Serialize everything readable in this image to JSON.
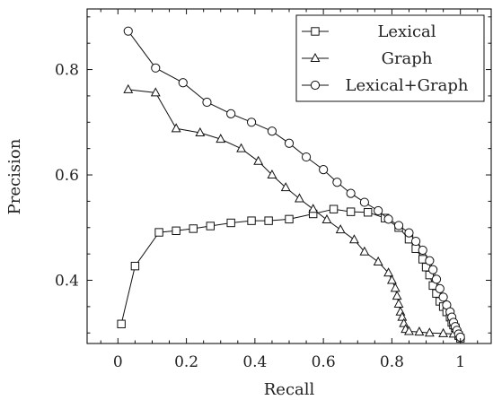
{
  "chart_data": {
    "type": "line",
    "title": "",
    "xlabel": "Recall",
    "ylabel": "Precision",
    "xlim": [
      -0.09,
      1.09
    ],
    "ylim": [
      0.28,
      0.915
    ],
    "xticks": [
      0,
      0.2,
      0.4,
      0.6,
      0.8,
      1
    ],
    "xtick_labels": [
      "0",
      "0.2",
      "0.4",
      "0.6",
      "0.8",
      "1"
    ],
    "yticks": [
      0.4,
      0.6,
      0.8
    ],
    "ytick_labels": [
      "0.4",
      "0.6",
      "0.8"
    ],
    "grid": false,
    "legend_position": "top-right",
    "series": [
      {
        "name": "Lexical",
        "marker": "square",
        "x": [
          0.01,
          0.05,
          0.12,
          0.17,
          0.22,
          0.27,
          0.33,
          0.39,
          0.44,
          0.5,
          0.57,
          0.63,
          0.68,
          0.73,
          0.78,
          0.82,
          0.85,
          0.87,
          0.89,
          0.9,
          0.91,
          0.92,
          0.93,
          0.94,
          0.95,
          0.96,
          0.97,
          0.975,
          0.98,
          0.985,
          0.99,
          0.995,
          1.0
        ],
        "y": [
          0.317,
          0.427,
          0.491,
          0.494,
          0.498,
          0.503,
          0.509,
          0.513,
          0.513,
          0.516,
          0.526,
          0.535,
          0.53,
          0.529,
          0.518,
          0.5,
          0.478,
          0.46,
          0.44,
          0.425,
          0.41,
          0.39,
          0.375,
          0.36,
          0.35,
          0.34,
          0.33,
          0.32,
          0.315,
          0.31,
          0.3,
          0.295,
          0.29
        ]
      },
      {
        "name": "Graph",
        "marker": "triangle",
        "x": [
          0.03,
          0.11,
          0.17,
          0.24,
          0.3,
          0.36,
          0.41,
          0.45,
          0.49,
          0.53,
          0.57,
          0.61,
          0.65,
          0.69,
          0.72,
          0.76,
          0.79,
          0.8,
          0.81,
          0.815,
          0.82,
          0.825,
          0.83,
          0.835,
          0.84,
          0.85,
          0.88,
          0.91,
          0.95,
          0.98,
          1.0
        ],
        "y": [
          0.762,
          0.756,
          0.688,
          0.68,
          0.668,
          0.65,
          0.626,
          0.6,
          0.576,
          0.555,
          0.535,
          0.515,
          0.496,
          0.477,
          0.454,
          0.435,
          0.414,
          0.4,
          0.385,
          0.37,
          0.355,
          0.34,
          0.33,
          0.318,
          0.307,
          0.303,
          0.302,
          0.3,
          0.299,
          0.298,
          0.295
        ]
      },
      {
        "name": "Lexical+Graph",
        "marker": "circle",
        "x": [
          0.03,
          0.11,
          0.19,
          0.26,
          0.33,
          0.39,
          0.45,
          0.5,
          0.55,
          0.6,
          0.64,
          0.68,
          0.72,
          0.76,
          0.79,
          0.82,
          0.85,
          0.87,
          0.89,
          0.91,
          0.92,
          0.93,
          0.94,
          0.95,
          0.96,
          0.97,
          0.975,
          0.98,
          0.985,
          0.99,
          0.995,
          1.0
        ],
        "y": [
          0.873,
          0.803,
          0.775,
          0.738,
          0.716,
          0.7,
          0.683,
          0.66,
          0.634,
          0.61,
          0.586,
          0.565,
          0.548,
          0.532,
          0.516,
          0.504,
          0.49,
          0.474,
          0.457,
          0.437,
          0.42,
          0.402,
          0.384,
          0.368,
          0.353,
          0.34,
          0.33,
          0.32,
          0.312,
          0.305,
          0.298,
          0.292
        ]
      }
    ]
  }
}
